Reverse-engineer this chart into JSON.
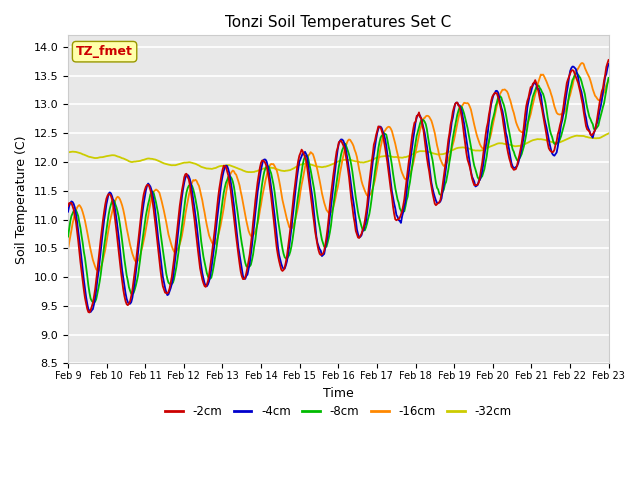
{
  "title": "Tonzi Soil Temperatures Set C",
  "xlabel": "Time",
  "ylabel": "Soil Temperature (C)",
  "ylim": [
    8.5,
    14.2
  ],
  "yticks": [
    8.5,
    9.0,
    9.5,
    10.0,
    10.5,
    11.0,
    11.5,
    12.0,
    12.5,
    13.0,
    13.5,
    14.0
  ],
  "legend_labels": [
    "-2cm",
    "-4cm",
    "-8cm",
    "-16cm",
    "-32cm"
  ],
  "legend_colors": [
    "#cc0000",
    "#0000cc",
    "#00bb00",
    "#ff8800",
    "#cccc00"
  ],
  "annotation_text": "TZ_fmet",
  "annotation_bg": "#ffffaa",
  "annotation_fg": "#cc0000",
  "fig_bg": "#ffffff",
  "plot_bg": "#e8e8e8",
  "xtick_labels": [
    "Feb 9",
    "Feb 10",
    "Feb 11",
    "Feb 12",
    "Feb 13",
    "Feb 14",
    "Feb 15",
    "Feb 16",
    "Feb 17",
    "Feb 18",
    "Feb 19",
    "Feb 20",
    "Feb 21",
    "Feb 22",
    "Feb 23"
  ],
  "n_points": 480
}
